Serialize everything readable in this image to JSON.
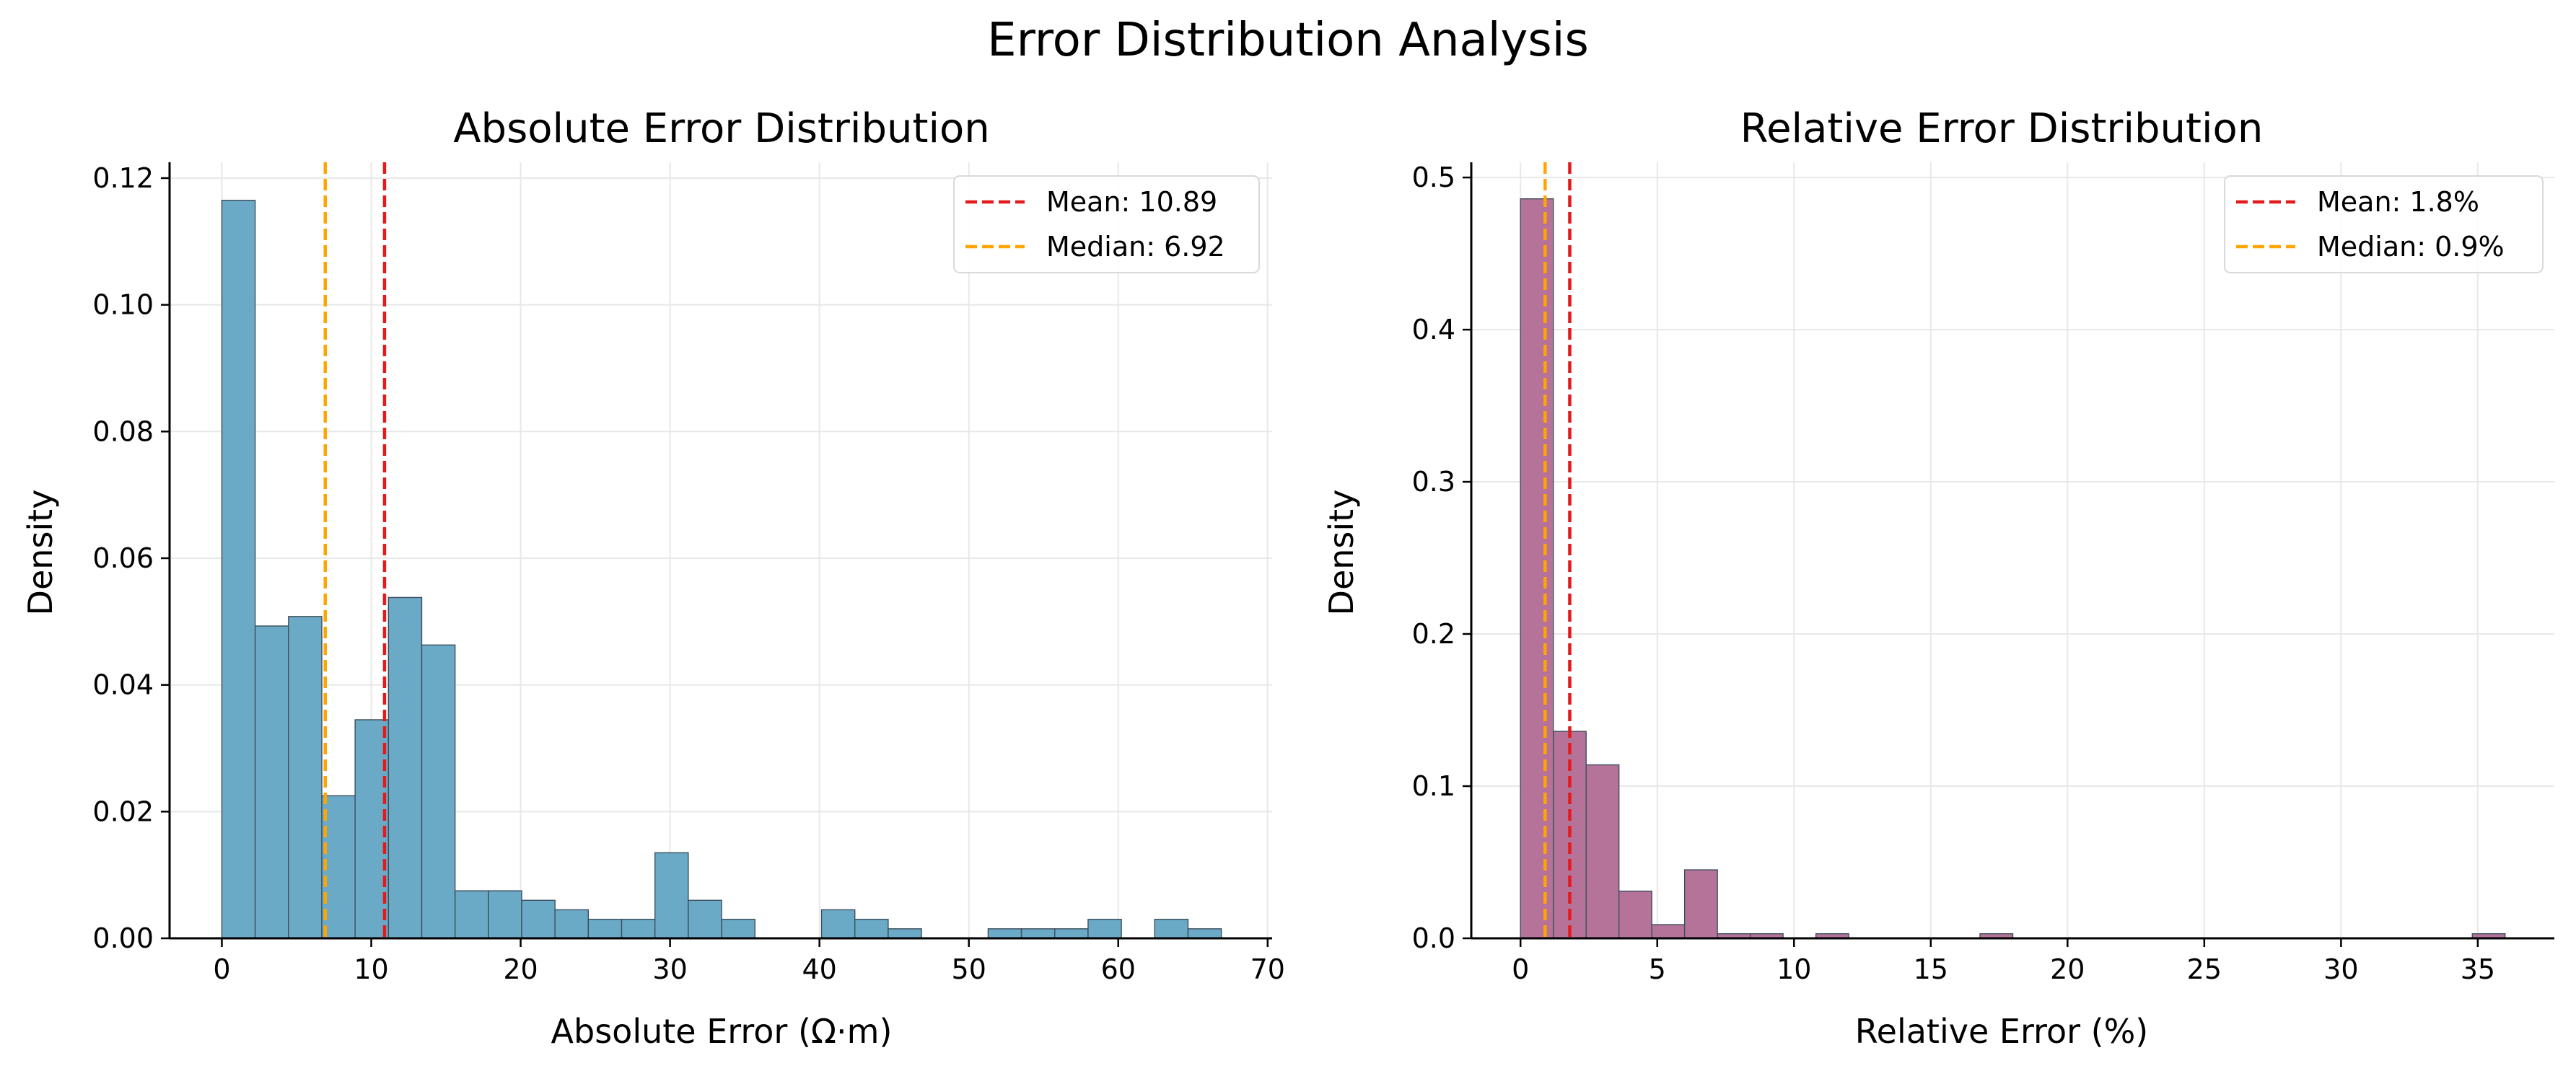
{
  "figure": {
    "title": "Error Distribution Analysis"
  },
  "chart_data": [
    {
      "type": "bar",
      "title": "Absolute Error Distribution",
      "xlabel": "Absolute Error (Ω·m)",
      "ylabel": "Density",
      "xlim": [
        -3.5,
        70.3
      ],
      "ylim": [
        0,
        0.1225
      ],
      "xticks": [
        0,
        10,
        20,
        30,
        40,
        50,
        60,
        70
      ],
      "yticks": [
        0.0,
        0.02,
        0.04,
        0.06,
        0.08,
        0.1,
        0.12
      ],
      "xtick_labels": [
        "0",
        "10",
        "20",
        "30",
        "40",
        "50",
        "60",
        "70"
      ],
      "ytick_labels": [
        "0.00",
        "0.02",
        "0.04",
        "0.06",
        "0.08",
        "0.10",
        "0.12"
      ],
      "bin_start": 0,
      "bin_width": 2.23,
      "values": [
        0.1165,
        0.0493,
        0.0508,
        0.0225,
        0.0345,
        0.0538,
        0.0463,
        0.0075,
        0.0075,
        0.006,
        0.0045,
        0.003,
        0.003,
        0.0135,
        0.006,
        0.003,
        0,
        0,
        0.0045,
        0.003,
        0.0015,
        0,
        0,
        0.0015,
        0.0015,
        0.0015,
        0.003,
        0,
        0.003,
        0.0015
      ],
      "bar_color": "#6BAAC6",
      "lines": [
        {
          "label": "Mean: 10.89",
          "x": 10.89,
          "color": "#E41A1C"
        },
        {
          "label": "Median: 6.92",
          "x": 6.92,
          "color": "#FFA500"
        }
      ],
      "legend_position": "top-right",
      "grid": true
    },
    {
      "type": "bar",
      "title": "Relative Error Distribution",
      "xlabel": "Relative Error (%)",
      "ylabel": "Density",
      "xlim": [
        -1.8,
        37.8
      ],
      "ylim": [
        0,
        0.51
      ],
      "xticks": [
        0,
        5,
        10,
        15,
        20,
        25,
        30,
        35
      ],
      "yticks": [
        0.0,
        0.1,
        0.2,
        0.3,
        0.4,
        0.5
      ],
      "xtick_labels": [
        "0",
        "5",
        "10",
        "15",
        "20",
        "25",
        "30",
        "35"
      ],
      "ytick_labels": [
        "0.0",
        "0.1",
        "0.2",
        "0.3",
        "0.4",
        "0.5"
      ],
      "bin_start": 0,
      "bin_width": 1.2,
      "values": [
        0.486,
        0.136,
        0.114,
        0.031,
        0.009,
        0.045,
        0.003,
        0.003,
        0,
        0.003,
        0,
        0,
        0,
        0,
        0.003,
        0,
        0,
        0,
        0,
        0,
        0,
        0,
        0,
        0,
        0,
        0,
        0,
        0,
        0,
        0.003
      ],
      "bar_color": "#B5739A",
      "lines": [
        {
          "label": "Mean: 1.8%",
          "x": 1.8,
          "color": "#E41A1C"
        },
        {
          "label": "Median: 0.9%",
          "x": 0.9,
          "color": "#FFA500"
        }
      ],
      "legend_position": "top-right",
      "grid": true
    }
  ]
}
